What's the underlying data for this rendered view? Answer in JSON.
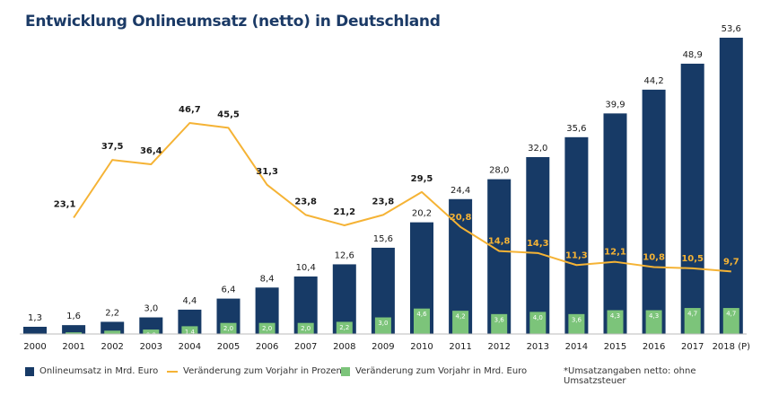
{
  "title": "Entwicklung Onlineumsatz (netto) in Deutschland",
  "note": "*Umsatzangaben netto: ohne Umsatzsteuer",
  "colors": {
    "bar": "#173a66",
    "line": "#f5b335",
    "change": "#7cc47a",
    "title": "#1b3a66"
  },
  "chart_data": {
    "type": "bar",
    "title": "Entwicklung Onlineumsatz (netto) in Deutschland",
    "categories": [
      "2000",
      "2001",
      "2002",
      "2003",
      "2004",
      "2005",
      "2006",
      "2007",
      "2008",
      "2009",
      "2010",
      "2011",
      "2012",
      "2013",
      "2014",
      "2015",
      "2016",
      "2017",
      "2018 (P)"
    ],
    "series": [
      {
        "name": "Onlineumsatz in Mrd. Euro",
        "type": "bar",
        "values": [
          1.3,
          1.6,
          2.2,
          3.0,
          4.4,
          6.4,
          8.4,
          10.4,
          12.6,
          15.6,
          20.2,
          24.4,
          28.0,
          32.0,
          35.6,
          39.9,
          44.2,
          48.9,
          53.6
        ],
        "labels": [
          "1,3",
          "1,6",
          "2,2",
          "3,0",
          "4,4",
          "6,4",
          "8,4",
          "10,4",
          "12,6",
          "15,6",
          "20,2",
          "24,4",
          "28,0",
          "32,0",
          "35,6",
          "39,9",
          "44,2",
          "48,9",
          "53,6"
        ]
      },
      {
        "name": "Veränderung zum Vorjahr in Mrd. Euro",
        "type": "bar",
        "values": [
          null,
          0.3,
          0.6,
          0.8,
          1.4,
          2.0,
          2.0,
          2.0,
          2.2,
          3.0,
          4.6,
          4.2,
          3.6,
          4.0,
          3.6,
          4.3,
          4.3,
          4.7,
          4.7
        ],
        "labels": [
          "",
          "0,3",
          "0,6",
          "0,8",
          "1,4",
          "2,0",
          "2,0",
          "2,0",
          "2,2",
          "3,0",
          "4,6",
          "4,2",
          "3,6",
          "4,0",
          "3,6",
          "4,3",
          "4,3",
          "4,7",
          "4,7"
        ]
      },
      {
        "name": "Veränderung zum Vorjahr in Prozent",
        "type": "line",
        "values": [
          null,
          23.1,
          37.5,
          36.4,
          46.7,
          45.5,
          31.3,
          23.8,
          21.2,
          23.8,
          29.5,
          20.8,
          14.8,
          14.3,
          11.3,
          12.1,
          10.8,
          10.5,
          9.7
        ],
        "labels": [
          "",
          "23,1",
          "37,5",
          "36,4",
          "46,7",
          "45,5",
          "31,3",
          "23,8",
          "21,2",
          "23,8",
          "29,5",
          "20,8",
          "14,8",
          "14,3",
          "11,3",
          "12,1",
          "10,8",
          "10,5",
          "9,7"
        ]
      }
    ],
    "legend_position": "bottom",
    "grid": false
  }
}
